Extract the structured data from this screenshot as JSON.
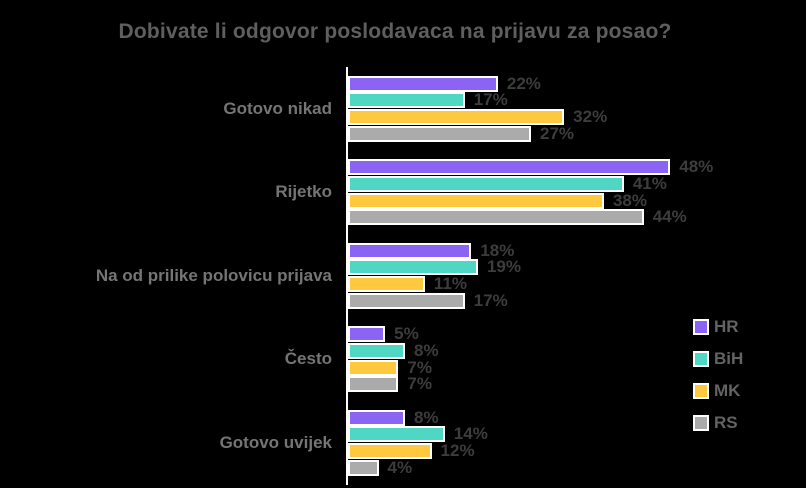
{
  "title": "Dobivate li odgovor poslodavaca na prijavu za posao?",
  "chart_data": {
    "type": "bar",
    "orientation": "horizontal",
    "title": "Dobivate li odgovor poslodavaca na prijavu za posao?",
    "categories": [
      "Gotovo nikad",
      "Rijetko",
      "Na od prilike polovicu prijava",
      "Često",
      "Gotovo uvijek"
    ],
    "series": [
      {
        "name": "HR",
        "color": "#8c64f4",
        "values": [
          22,
          48,
          18,
          5,
          8
        ]
      },
      {
        "name": "BiH",
        "color": "#4fd7c3",
        "values": [
          17,
          41,
          19,
          8,
          14
        ]
      },
      {
        "name": "MK",
        "color": "#ffc93f",
        "values": [
          32,
          38,
          11,
          7,
          12
        ]
      },
      {
        "name": "RS",
        "color": "#ababab",
        "values": [
          27,
          44,
          17,
          7,
          4
        ]
      }
    ],
    "value_suffix": "%",
    "xlim": [
      0,
      65
    ],
    "grid": false,
    "legend_position": "right",
    "background_color": "#000000",
    "axis_color": "#ffffff",
    "title_color": "#5f5f5f",
    "category_label_color": "#757575",
    "value_label_color": "#3d3d3d"
  }
}
